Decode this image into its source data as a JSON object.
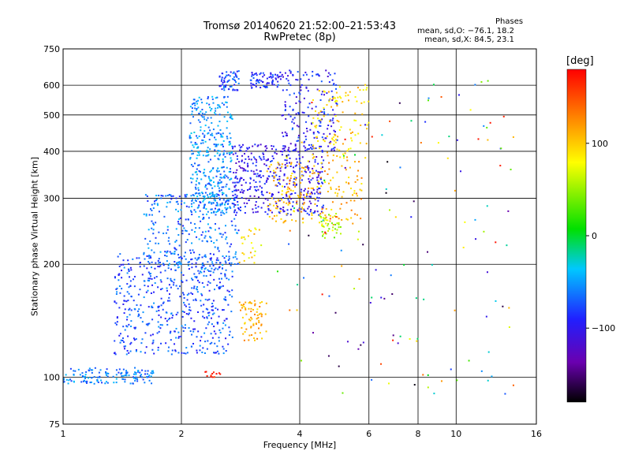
{
  "header": {
    "title_line1": "Tromsø 20140620 21:52:00–21:53:43",
    "title_line2": "RwPretec (8p)",
    "stats_title": "Phases",
    "stats_o": "mean, sd,O: −76.1, 18.2",
    "stats_x": "mean, sd,X: 84.5, 23.1"
  },
  "colorbar": {
    "unit": "[deg]",
    "tick_labels": [
      "100",
      "0",
      "−100"
    ],
    "tick_values": [
      100,
      0,
      -100
    ],
    "range": [
      -180,
      180
    ]
  },
  "chart_data": {
    "type": "scatter",
    "title": "Tromsø 20140620 21:52:00–21:53:43",
    "subtitle": "RwPretec (8p)",
    "xlabel": "Frequency [MHz]",
    "ylabel": "Stationary phase Virtual Height [km]",
    "x_scale": "log",
    "y_scale": "log",
    "xlim": [
      1,
      16
    ],
    "ylim": [
      75,
      750
    ],
    "x_ticks": [
      1,
      2,
      4,
      6,
      8,
      10,
      16
    ],
    "x_tick_labels": [
      "1",
      "2",
      "4",
      "6",
      "8",
      "10",
      "16"
    ],
    "y_ticks": [
      75,
      100,
      200,
      300,
      400,
      500,
      600,
      750
    ],
    "y_tick_labels": [
      "75",
      "100",
      "200",
      "300",
      "400",
      "500",
      "600",
      "750"
    ],
    "grid": true,
    "color_label": "Phase [deg]",
    "clusters": [
      {
        "x_range": [
          1.0,
          1.7
        ],
        "y_range": [
          96,
          106
        ],
        "phase": -60,
        "n": 140
      },
      {
        "x_range": [
          1.35,
          2.7
        ],
        "y_range": [
          115,
          215
        ],
        "phase": -75,
        "n": 520
      },
      {
        "x_range": [
          1.6,
          2.8
        ],
        "y_range": [
          190,
          310
        ],
        "phase": -65,
        "n": 300
      },
      {
        "x_range": [
          2.1,
          2.7
        ],
        "y_range": [
          270,
          560
        ],
        "phase": -55,
        "n": 380
      },
      {
        "x_range": [
          2.5,
          2.8
        ],
        "y_range": [
          580,
          660
        ],
        "phase": -80,
        "n": 60
      },
      {
        "x_range": [
          3.0,
          3.6
        ],
        "y_range": [
          590,
          650
        ],
        "phase": -85,
        "n": 70
      },
      {
        "x_range": [
          2.7,
          4.6
        ],
        "y_range": [
          270,
          420
        ],
        "phase": -100,
        "n": 420
      },
      {
        "x_range": [
          3.6,
          5.0
        ],
        "y_range": [
          400,
          660
        ],
        "phase": -95,
        "n": 180
      },
      {
        "x_range": [
          3.3,
          5.8
        ],
        "y_range": [
          255,
          380
        ],
        "phase": 110,
        "n": 200
      },
      {
        "x_range": [
          4.3,
          6.0
        ],
        "y_range": [
          380,
          600
        ],
        "phase": 95,
        "n": 110
      },
      {
        "x_range": [
          4.5,
          5.1
        ],
        "y_range": [
          235,
          275
        ],
        "phase": 55,
        "n": 40
      },
      {
        "x_range": [
          2.8,
          3.3
        ],
        "y_range": [
          125,
          160
        ],
        "phase": 110,
        "n": 70
      },
      {
        "x_range": [
          2.8,
          3.2
        ],
        "y_range": [
          200,
          250
        ],
        "phase": 90,
        "n": 25
      },
      {
        "x_range": [
          2.3,
          2.55
        ],
        "y_range": [
          100,
          104
        ],
        "phase": 160,
        "n": 12
      },
      {
        "x_range": [
          3.5,
          14.0
        ],
        "y_range": [
          90,
          620
        ],
        "phase": 0,
        "n": 150
      }
    ]
  }
}
